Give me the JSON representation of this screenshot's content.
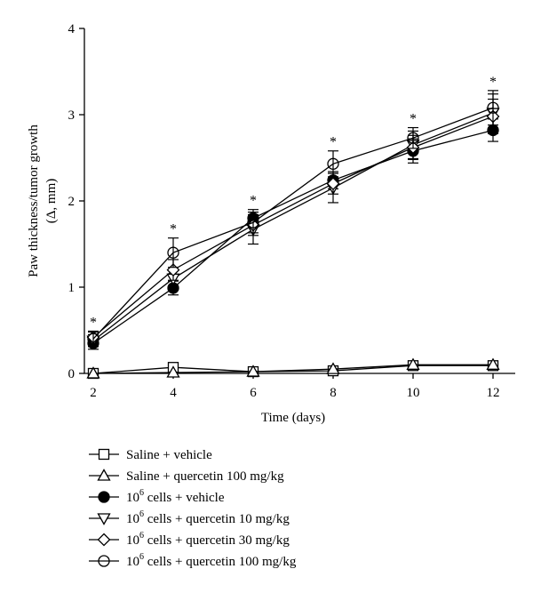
{
  "chart_data": {
    "type": "line",
    "title": "",
    "xlabel": "Time (days)",
    "ylabel": "Paw thickness/tumor growth",
    "ylabel_unit": "(Δ, mm)",
    "x": [
      2,
      4,
      6,
      8,
      10,
      12
    ],
    "xticks": [
      "2",
      "4",
      "6",
      "8",
      "10",
      "12"
    ],
    "yticks": [
      "0",
      "1",
      "2",
      "3",
      "4"
    ],
    "xlim": [
      2,
      12
    ],
    "ylim": [
      0,
      4
    ],
    "grid": false,
    "legend_position": "bottom",
    "significance_marker": "*",
    "significance_x": [
      2,
      4,
      6,
      8,
      10,
      12
    ],
    "series": [
      {
        "name_prefix": "",
        "name_sup": "",
        "name": "Saline + vehicle",
        "marker": "square-open",
        "values": [
          0.0,
          0.07,
          0.02,
          0.03,
          0.09,
          0.09
        ],
        "err": [
          0.01,
          0.01,
          0.01,
          0.01,
          0.01,
          0.01
        ]
      },
      {
        "name_prefix": "",
        "name_sup": "",
        "name": "Saline + quercetin 100 mg/kg",
        "marker": "triangle-up-open",
        "values": [
          0.0,
          0.01,
          0.02,
          0.05,
          0.1,
          0.1
        ],
        "err": [
          0.01,
          0.01,
          0.01,
          0.01,
          0.01,
          0.01
        ]
      },
      {
        "name_prefix": "10",
        "name_sup": "6",
        "name": " cells + vehicle",
        "marker": "circle-filled",
        "values": [
          0.35,
          0.99,
          1.8,
          2.24,
          2.58,
          2.82
        ],
        "err": [
          0.07,
          0.08,
          0.1,
          0.1,
          0.14,
          0.13
        ]
      },
      {
        "name_prefix": "10",
        "name_sup": "6",
        "name": " cells + quercetin 10 mg/kg",
        "marker": "triangle-down-open",
        "values": [
          0.38,
          1.1,
          1.67,
          2.15,
          2.65,
          3.02
        ],
        "err": [
          0.07,
          0.1,
          0.17,
          0.17,
          0.16,
          0.22
        ]
      },
      {
        "name_prefix": "10",
        "name_sup": "6",
        "name": " cells + quercetin 30 mg/kg",
        "marker": "diamond-open",
        "values": [
          0.42,
          1.2,
          1.72,
          2.2,
          2.62,
          2.98
        ],
        "err": [
          0.07,
          0.12,
          0.12,
          0.12,
          0.14,
          0.2
        ]
      },
      {
        "name_prefix": "10",
        "name_sup": "6",
        "name": " cells + quercetin 100 mg/kg",
        "marker": "circle-open",
        "values": [
          0.4,
          1.4,
          1.75,
          2.43,
          2.73,
          3.08
        ],
        "err": [
          0.08,
          0.17,
          0.12,
          0.15,
          0.12,
          0.2
        ]
      }
    ]
  },
  "colors": {
    "ink": "#000000",
    "background": "#ffffff"
  }
}
